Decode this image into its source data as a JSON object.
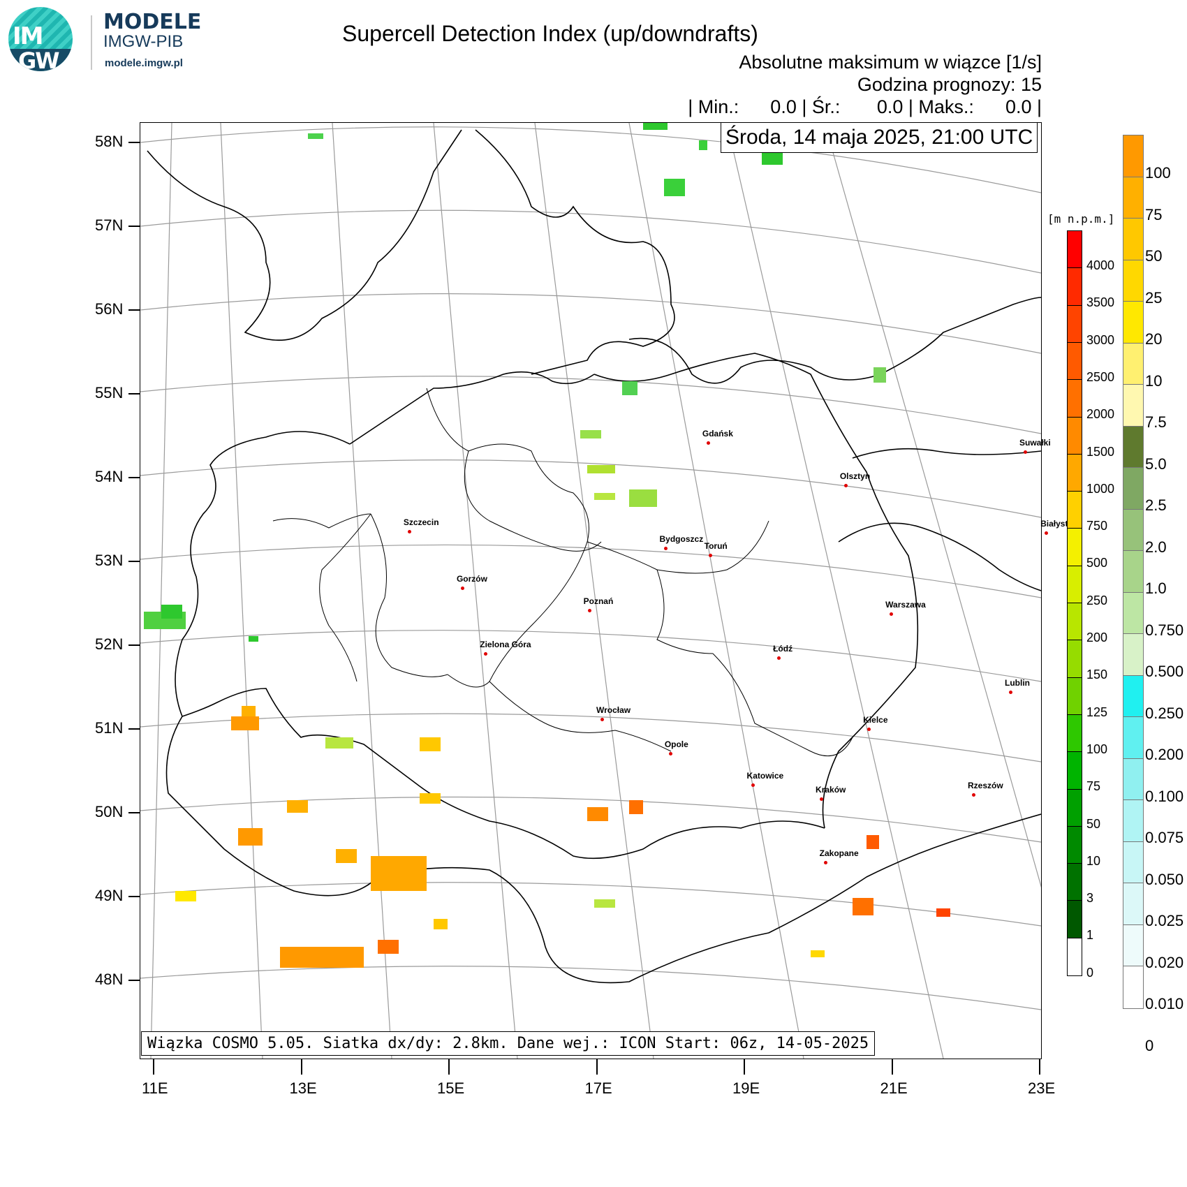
{
  "brand": {
    "logo_text_top": "IM",
    "logo_text_bottom": "GW",
    "name": "MODELE",
    "subname": "IMGW-PIB",
    "url": "modele.imgw.pl"
  },
  "header": {
    "title": "Supercell Detection Index (up/downdrafts)",
    "subtitle": "Absolutne maksimum w wiązce [1/s]",
    "forecast_hour": "Godzina prognozy: 15",
    "stats": "| Min.:      0.0 | Śr.:       0.0 | Maks.:      0.0 |",
    "date": "Środa, 14 maja 2025, 21:00 UTC"
  },
  "footer": "Wiązka COSMO 5.05. Siatka dx/dy: 2.8km. Dane wej.: ICON Start: 06z, 14-05-2025",
  "axes": {
    "lat_labels": [
      "58N",
      "57N",
      "56N",
      "55N",
      "54N",
      "53N",
      "52N",
      "51N",
      "50N",
      "49N",
      "48N"
    ],
    "lon_labels": [
      "11E",
      "13E",
      "15E",
      "17E",
      "19E",
      "21E",
      "23E"
    ]
  },
  "cities": [
    {
      "name": "Gdańsk",
      "lon": 18.65,
      "lat": 54.35
    },
    {
      "name": "Suwałki",
      "lon": 22.93,
      "lat": 54.1
    },
    {
      "name": "Olsztyn",
      "lon": 20.48,
      "lat": 53.78
    },
    {
      "name": "Białystok",
      "lon": 23.16,
      "lat": 53.13
    },
    {
      "name": "Szczecin",
      "lon": 14.55,
      "lat": 53.43
    },
    {
      "name": "Bydgoszcz",
      "lon": 18.0,
      "lat": 53.12
    },
    {
      "name": "Toruń",
      "lon": 18.6,
      "lat": 53.01
    },
    {
      "name": "Gorzów",
      "lon": 15.23,
      "lat": 52.73
    },
    {
      "name": "Poznań",
      "lon": 16.93,
      "lat": 52.41
    },
    {
      "name": "Warszawa",
      "lon": 21.01,
      "lat": 52.23
    },
    {
      "name": "Zielona Góra",
      "lon": 15.5,
      "lat": 51.94
    },
    {
      "name": "Łódź",
      "lon": 19.46,
      "lat": 51.76
    },
    {
      "name": "Lublin",
      "lon": 22.57,
      "lat": 51.25
    },
    {
      "name": "Wrocław",
      "lon": 17.03,
      "lat": 51.11
    },
    {
      "name": "Kielce",
      "lon": 20.63,
      "lat": 50.87
    },
    {
      "name": "Opole",
      "lon": 17.93,
      "lat": 50.67
    },
    {
      "name": "Rzeszów",
      "lon": 22.0,
      "lat": 50.04
    },
    {
      "name": "Katowice",
      "lon": 19.02,
      "lat": 50.26
    },
    {
      "name": "Kraków",
      "lon": 19.94,
      "lat": 50.06
    },
    {
      "name": "Zakopane",
      "lon": 19.95,
      "lat": 49.3
    }
  ],
  "elevation_scale": {
    "unit": "[m n.p.m.]",
    "labels": [
      "4000",
      "3500",
      "3000",
      "2500",
      "2000",
      "1500",
      "1000",
      "750",
      "500",
      "250",
      "200",
      "150",
      "125",
      "100",
      "75",
      "50",
      "10",
      "3",
      "1",
      "0"
    ],
    "colors": [
      "#ff0000",
      "#ff2a00",
      "#ff4400",
      "#ff5a00",
      "#ff7000",
      "#ff8a00",
      "#ffa800",
      "#ffd000",
      "#f4f000",
      "#d8ee00",
      "#b8e600",
      "#96dc00",
      "#70d200",
      "#2ec800",
      "#00b400",
      "#00a000",
      "#008a00",
      "#007200",
      "#005800",
      "#ffffff"
    ]
  },
  "sdi_scale": {
    "labels": [
      "100",
      "75",
      "50",
      "25",
      "20",
      "10",
      "7.5",
      "5.0",
      "2.5",
      "2.0",
      "1.0",
      "0.750",
      "0.500",
      "0.250",
      "0.200",
      "0.100",
      "0.075",
      "0.050",
      "0.025",
      "0.020",
      "0.010",
      "0"
    ],
    "colors": [
      "#ff9900",
      "#ffb000",
      "#ffc800",
      "#ffd800",
      "#ffe800",
      "#fff070",
      "#fff8b0",
      "#5f7a2e",
      "#7fa863",
      "#97c27a",
      "#a8d48a",
      "#bde6a4",
      "#d8f2c8",
      "#20f0f0",
      "#60f0f0",
      "#90f0f0",
      "#b0f4f4",
      "#c8f6f6",
      "#dcf8f8",
      "#eefbfb",
      "#ffffff"
    ]
  }
}
